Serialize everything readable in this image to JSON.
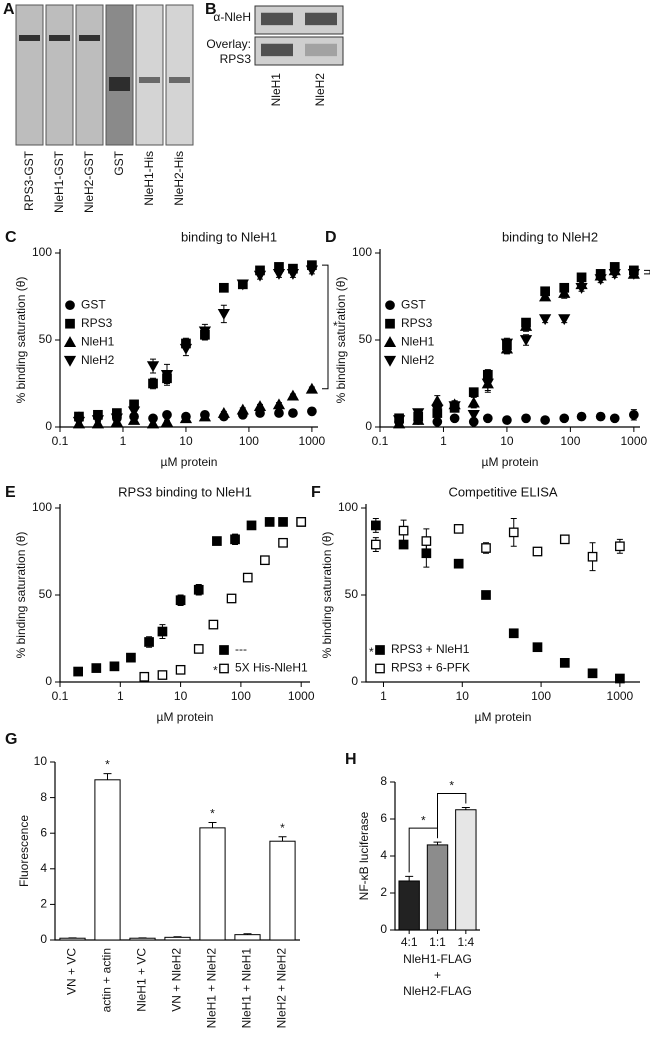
{
  "chart_data": [
    {
      "type": "blot",
      "panel": "A",
      "categories": [
        "RPS3-GST",
        "NleH1-GST",
        "NleH2-GST",
        "GST",
        "NleH1-His",
        "NleH2-His"
      ]
    },
    {
      "type": "blot",
      "panel": "B",
      "row_labels": [
        "α-NleH",
        "Overlay:",
        "RPS3"
      ],
      "categories": [
        "NleH1",
        "NleH2"
      ]
    },
    {
      "type": "scatter",
      "panel": "C",
      "title": "binding to NleH1",
      "xlabel": "µM protein",
      "ylabel": "% binding saturation (θ)",
      "xscale": "log",
      "xlim": [
        0.1,
        1250
      ],
      "ylim": [
        0,
        100
      ],
      "xticks": [
        0.1,
        1,
        10,
        100,
        1000
      ],
      "yticks": [
        0,
        50,
        100
      ],
      "legend": "center left",
      "annotation": "*",
      "series": [
        {
          "name": "GST",
          "marker": "circle",
          "color": "#000000",
          "x": [
            0.2,
            0.4,
            0.8,
            1.5,
            3,
            5,
            10,
            20,
            40,
            80,
            150,
            300,
            500,
            1000
          ],
          "values": [
            6,
            6,
            5,
            6,
            5,
            7,
            6,
            7,
            6,
            7,
            8,
            8,
            8,
            9
          ],
          "errors": [
            1,
            1,
            1,
            1,
            1,
            2,
            1,
            2,
            1,
            2,
            2,
            2,
            2,
            2
          ]
        },
        {
          "name": "RPS3",
          "marker": "square",
          "color": "#000000",
          "x": [
            0.2,
            0.4,
            0.8,
            1.5,
            3,
            5,
            10,
            20,
            40,
            80,
            150,
            300,
            500,
            1000
          ],
          "values": [
            6,
            7,
            8,
            13,
            25,
            28,
            48,
            53,
            80,
            82,
            90,
            92,
            91,
            93
          ],
          "errors": [
            1,
            1,
            1,
            2,
            3,
            3,
            3,
            3,
            2,
            2,
            2,
            1,
            1,
            2
          ]
        },
        {
          "name": "NleH1",
          "marker": "triangle-up",
          "color": "#000000",
          "x": [
            0.2,
            0.4,
            0.8,
            1.5,
            3,
            5,
            10,
            20,
            40,
            80,
            150,
            300,
            500,
            1000
          ],
          "values": [
            2,
            2,
            3,
            4,
            2,
            3,
            5,
            6,
            8,
            10,
            12,
            13,
            18,
            22
          ],
          "errors": [
            1,
            1,
            1,
            1,
            1,
            1,
            1,
            1,
            1,
            1,
            1,
            1,
            1,
            1
          ]
        },
        {
          "name": "NleH2",
          "marker": "triangle-down",
          "color": "#000000",
          "x": [
            0.2,
            0.4,
            0.8,
            1.5,
            3,
            5,
            10,
            20,
            40,
            80,
            150,
            300,
            500,
            1000
          ],
          "values": [
            3,
            4,
            5,
            9,
            35,
            30,
            45,
            55,
            65,
            82,
            87,
            88,
            88,
            90
          ],
          "errors": [
            1,
            1,
            2,
            3,
            4,
            6,
            4,
            4,
            5,
            2,
            2,
            2,
            2,
            2
          ]
        }
      ]
    },
    {
      "type": "scatter",
      "panel": "D",
      "title": "binding to NleH2",
      "xlabel": "µM protein",
      "ylabel": "% binding saturation (θ)",
      "xscale": "log",
      "xlim": [
        0.1,
        1250
      ],
      "ylim": [
        0,
        100
      ],
      "xticks": [
        0.1,
        1,
        10,
        100,
        1000
      ],
      "yticks": [
        0,
        50,
        100
      ],
      "legend": "center left",
      "annotation": "*",
      "series": [
        {
          "name": "GST",
          "marker": "circle",
          "color": "#000000",
          "x": [
            0.2,
            0.4,
            0.8,
            1.5,
            3,
            5,
            10,
            20,
            40,
            80,
            150,
            300,
            500,
            1000
          ],
          "values": [
            3,
            4,
            3,
            5,
            3,
            5,
            4,
            5,
            4,
            5,
            6,
            6,
            5,
            7
          ],
          "errors": [
            1,
            1,
            1,
            1,
            1,
            1,
            1,
            2,
            1,
            1,
            2,
            2,
            1,
            3
          ]
        },
        {
          "name": "RPS3",
          "marker": "square",
          "color": "#000000",
          "x": [
            0.2,
            0.4,
            0.8,
            1.5,
            3,
            5,
            10,
            20,
            40,
            80,
            150,
            300,
            500,
            1000
          ],
          "values": [
            5,
            6,
            8,
            11,
            20,
            30,
            47,
            60,
            78,
            80,
            86,
            88,
            92,
            90
          ],
          "errors": [
            1,
            1,
            1,
            2,
            2,
            3,
            3,
            2,
            2,
            2,
            2,
            2,
            1,
            2
          ]
        },
        {
          "name": "NleH1",
          "marker": "triangle-up",
          "color": "#000000",
          "x": [
            0.2,
            0.4,
            0.8,
            1.5,
            3,
            5,
            10,
            20,
            40,
            80,
            150,
            300,
            500,
            1000
          ],
          "values": [
            2,
            4,
            15,
            13,
            14,
            25,
            45,
            58,
            75,
            77,
            82,
            87,
            90,
            88
          ],
          "errors": [
            1,
            1,
            3,
            2,
            3,
            4,
            3,
            3,
            2,
            3,
            2,
            2,
            2,
            2
          ]
        },
        {
          "name": "NleH2",
          "marker": "triangle-down",
          "color": "#000000",
          "x": [
            0.2,
            0.4,
            0.8,
            1.5,
            3,
            5,
            10,
            20,
            40,
            80,
            150,
            300,
            500,
            1000
          ],
          "values": [
            4,
            8,
            10,
            12,
            7,
            25,
            48,
            50,
            62,
            62,
            80,
            85,
            88,
            88
          ],
          "errors": [
            1,
            2,
            4,
            3,
            2,
            5,
            3,
            3,
            2,
            2,
            2,
            2,
            2,
            2
          ]
        }
      ]
    },
    {
      "type": "scatter",
      "panel": "E",
      "title": "RPS3 binding to NleH1",
      "xlabel": "µM protein",
      "ylabel": "% binding saturation (θ)",
      "xscale": "log",
      "xlim": [
        0.1,
        1400
      ],
      "ylim": [
        0,
        100
      ],
      "xticks": [
        0.1,
        1,
        10,
        100,
        1000
      ],
      "yticks": [
        0,
        50,
        100
      ],
      "legend": "lower right",
      "series": [
        {
          "name": "---",
          "marker": "square",
          "color": "#000000",
          "x": [
            0.2,
            0.4,
            0.8,
            1.5,
            3,
            5,
            10,
            20,
            40,
            80,
            150,
            300,
            500,
            1000
          ],
          "values": [
            6,
            8,
            9,
            14,
            23,
            29,
            47,
            53,
            81,
            82,
            90,
            92,
            92,
            92
          ],
          "errors": [
            1,
            1,
            1,
            1,
            3,
            4,
            3,
            3,
            2,
            3,
            2,
            1,
            1,
            1
          ]
        },
        {
          "name": "5X His-NleH1",
          "marker": "square-open",
          "note": "*",
          "color": "#000000",
          "x": [
            2.5,
            5,
            10,
            20,
            35,
            70,
            130,
            250,
            500,
            1000
          ],
          "values": [
            3,
            4,
            7,
            19,
            33,
            48,
            60,
            70,
            80,
            92
          ],
          "errors": [
            0,
            0,
            1,
            1,
            1,
            1,
            1,
            2,
            1,
            1
          ]
        }
      ]
    },
    {
      "type": "scatter",
      "panel": "F",
      "title": "Competitive ELISA",
      "xlabel": "µM protein",
      "ylabel": "% binding saturation (θ)",
      "xscale": "log",
      "xlim": [
        0.6,
        1800
      ],
      "ylim": [
        0,
        100
      ],
      "xticks": [
        1,
        10,
        100,
        1000
      ],
      "yticks": [
        0,
        50,
        100
      ],
      "legend": "lower left",
      "series": [
        {
          "name": "RPS3 + NleH1",
          "marker": "square",
          "note": "*",
          "color": "#000000",
          "x": [
            0.8,
            1.8,
            3.5,
            9,
            20,
            45,
            90,
            200,
            450,
            1000
          ],
          "values": [
            90,
            79,
            74,
            68,
            50,
            28,
            20,
            11,
            5,
            2
          ],
          "errors": [
            4,
            1,
            8,
            2,
            1,
            2,
            1,
            1,
            1,
            1
          ]
        },
        {
          "name": "RPS3 + 6-PFK",
          "marker": "square-open",
          "color": "#000000",
          "x": [
            0.8,
            1.8,
            3.5,
            9,
            20,
            45,
            90,
            200,
            450,
            1000
          ],
          "values": [
            79,
            87,
            81,
            88,
            77,
            86,
            75,
            82,
            72,
            78
          ],
          "errors": [
            4,
            6,
            7,
            2,
            3,
            8,
            2,
            1,
            8,
            4
          ]
        }
      ]
    },
    {
      "type": "bar",
      "panel": "G",
      "ylabel": "Fluorescence",
      "ylim": [
        0,
        10
      ],
      "yticks": [
        0,
        2,
        4,
        6,
        8,
        10
      ],
      "xtick_rotation": 90,
      "categories": [
        "VN + VC",
        "actin + actin",
        "NleH1 + VC",
        "VN + NleH2",
        "NleH1 + NleH2",
        "NleH1 + NleH1",
        "NleH2 + NleH2"
      ],
      "values": [
        0.1,
        9.0,
        0.1,
        0.15,
        6.3,
        0.3,
        5.55
      ],
      "errors": [
        0.02,
        0.35,
        0.02,
        0.03,
        0.3,
        0.05,
        0.25
      ],
      "significance": [
        null,
        "*",
        null,
        null,
        "*",
        null,
        "*"
      ],
      "color": "#ffffff"
    },
    {
      "type": "bar",
      "panel": "H",
      "ylabel": "NF-κB luciferase",
      "ylim": [
        0,
        8
      ],
      "yticks": [
        0,
        2,
        4,
        6,
        8
      ],
      "categories": [
        "4:1",
        "1:1",
        "1:4"
      ],
      "values": [
        2.65,
        4.6,
        6.5
      ],
      "errors": [
        0.25,
        0.15,
        0.12
      ],
      "colors": [
        "#222222",
        "#8c8c8c",
        "#e6e6e6"
      ],
      "brackets": [
        "*",
        "*"
      ],
      "xlabel": [
        "NleH1-FLAG",
        "+",
        "NleH2-FLAG"
      ]
    }
  ]
}
